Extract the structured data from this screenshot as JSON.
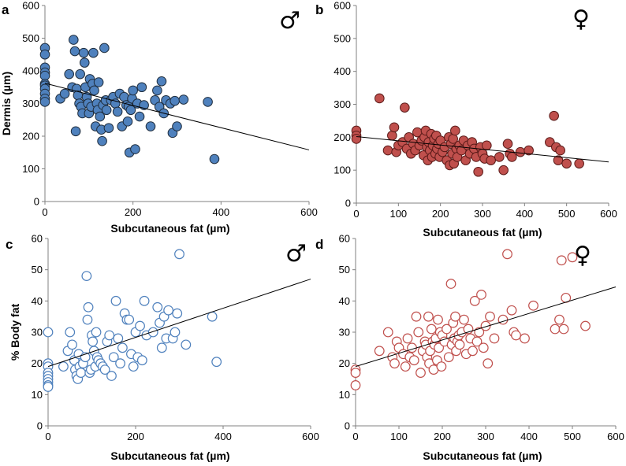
{
  "chart_data": [
    {
      "panel": "a",
      "type": "scatter",
      "sex_symbol": "♂",
      "xlabel": "Subcutaneous fat (µm)",
      "ylabel": "Dermis (µm)",
      "xlim": [
        0,
        600
      ],
      "ylim": [
        0,
        600
      ],
      "xticks": [
        0,
        200,
        400,
        600
      ],
      "yticks": [
        0,
        100,
        200,
        300,
        400,
        500,
        600
      ],
      "marker": {
        "fill": "#4f81bd",
        "stroke": "#1f2d3d",
        "filled": true
      },
      "trendline": {
        "x": [
          0,
          600
        ],
        "y": [
          362,
          158
        ]
      },
      "points": [
        [
          0,
          470
        ],
        [
          0,
          450
        ],
        [
          0,
          410
        ],
        [
          0,
          395
        ],
        [
          0,
          385
        ],
        [
          0,
          360
        ],
        [
          0,
          355
        ],
        [
          0,
          345
        ],
        [
          0,
          330
        ],
        [
          0,
          315
        ],
        [
          0,
          305
        ],
        [
          35,
          315
        ],
        [
          45,
          330
        ],
        [
          55,
          390
        ],
        [
          62,
          350
        ],
        [
          65,
          495
        ],
        [
          68,
          460
        ],
        [
          70,
          215
        ],
        [
          72,
          345
        ],
        [
          75,
          325
        ],
        [
          78,
          300
        ],
        [
          80,
          390
        ],
        [
          82,
          290
        ],
        [
          85,
          270
        ],
        [
          88,
          455
        ],
        [
          90,
          425
        ],
        [
          92,
          350
        ],
        [
          95,
          320
        ],
        [
          98,
          300
        ],
        [
          100,
          270
        ],
        [
          102,
          375
        ],
        [
          105,
          290
        ],
        [
          108,
          360
        ],
        [
          110,
          455
        ],
        [
          112,
          340
        ],
        [
          115,
          230
        ],
        [
          118,
          300
        ],
        [
          120,
          280
        ],
        [
          122,
          365
        ],
        [
          125,
          260
        ],
        [
          128,
          220
        ],
        [
          130,
          185
        ],
        [
          132,
          295
        ],
        [
          135,
          470
        ],
        [
          138,
          310
        ],
        [
          140,
          280
        ],
        [
          145,
          225
        ],
        [
          150,
          310
        ],
        [
          155,
          320
        ],
        [
          160,
          300
        ],
        [
          165,
          275
        ],
        [
          170,
          330
        ],
        [
          175,
          230
        ],
        [
          180,
          320
        ],
        [
          185,
          295
        ],
        [
          188,
          245
        ],
        [
          190,
          290
        ],
        [
          192,
          150
        ],
        [
          195,
          280
        ],
        [
          198,
          315
        ],
        [
          200,
          340
        ],
        [
          205,
          160
        ],
        [
          210,
          300
        ],
        [
          215,
          260
        ],
        [
          220,
          350
        ],
        [
          225,
          295
        ],
        [
          240,
          230
        ],
        [
          250,
          310
        ],
        [
          255,
          340
        ],
        [
          260,
          290
        ],
        [
          265,
          368
        ],
        [
          270,
          270
        ],
        [
          275,
          310
        ],
        [
          285,
          300
        ],
        [
          290,
          210
        ],
        [
          295,
          308
        ],
        [
          300,
          230
        ],
        [
          315,
          312
        ],
        [
          370,
          305
        ],
        [
          385,
          130
        ]
      ]
    },
    {
      "panel": "b",
      "type": "scatter",
      "sex_symbol": "♀",
      "xlabel": "Subcutaneous fat (µm)",
      "ylabel": "",
      "xlim": [
        0,
        600
      ],
      "ylim": [
        0,
        600
      ],
      "xticks": [
        0,
        100,
        200,
        300,
        400,
        500,
        600
      ],
      "yticks": [
        0,
        100,
        200,
        300,
        400,
        500,
        600
      ],
      "marker": {
        "fill": "#c0504d",
        "stroke": "#5a1a18",
        "filled": true
      },
      "trendline": {
        "x": [
          0,
          600
        ],
        "y": [
          202,
          125
        ]
      },
      "points": [
        [
          0,
          220
        ],
        [
          0,
          205
        ],
        [
          0,
          195
        ],
        [
          55,
          318
        ],
        [
          75,
          160
        ],
        [
          85,
          205
        ],
        [
          90,
          230
        ],
        [
          95,
          155
        ],
        [
          100,
          175
        ],
        [
          110,
          185
        ],
        [
          115,
          290
        ],
        [
          120,
          165
        ],
        [
          125,
          200
        ],
        [
          130,
          150
        ],
        [
          135,
          180
        ],
        [
          140,
          160
        ],
        [
          145,
          215
        ],
        [
          150,
          175
        ],
        [
          155,
          190
        ],
        [
          160,
          145
        ],
        [
          162,
          200
        ],
        [
          165,
          220
        ],
        [
          168,
          170
        ],
        [
          170,
          130
        ],
        [
          172,
          185
        ],
        [
          175,
          160
        ],
        [
          178,
          210
        ],
        [
          180,
          140
        ],
        [
          182,
          175
        ],
        [
          185,
          195
        ],
        [
          188,
          150
        ],
        [
          190,
          205
        ],
        [
          192,
          165
        ],
        [
          195,
          180
        ],
        [
          198,
          140
        ],
        [
          200,
          190
        ],
        [
          205,
          155
        ],
        [
          210,
          170
        ],
        [
          215,
          130
        ],
        [
          220,
          200
        ],
        [
          222,
          115
        ],
        [
          225,
          180
        ],
        [
          228,
          150
        ],
        [
          230,
          195
        ],
        [
          232,
          120
        ],
        [
          235,
          220
        ],
        [
          238,
          165
        ],
        [
          240,
          140
        ],
        [
          245,
          175
        ],
        [
          250,
          160
        ],
        [
          255,
          190
        ],
        [
          260,
          130
        ],
        [
          265,
          175
        ],
        [
          270,
          150
        ],
        [
          275,
          185
        ],
        [
          280,
          165
        ],
        [
          285,
          140
        ],
        [
          290,
          95
        ],
        [
          295,
          170
        ],
        [
          300,
          150
        ],
        [
          305,
          135
        ],
        [
          310,
          175
        ],
        [
          320,
          130
        ],
        [
          340,
          140
        ],
        [
          350,
          100
        ],
        [
          360,
          180
        ],
        [
          365,
          150
        ],
        [
          370,
          140
        ],
        [
          390,
          155
        ],
        [
          410,
          160
        ],
        [
          460,
          185
        ],
        [
          470,
          265
        ],
        [
          475,
          170
        ],
        [
          480,
          130
        ],
        [
          485,
          160
        ],
        [
          500,
          120
        ],
        [
          530,
          120
        ]
      ]
    },
    {
      "panel": "c",
      "type": "scatter",
      "sex_symbol": "♂",
      "xlabel": "Subcutaneous fat (µm)",
      "ylabel": "% Body fat",
      "xlim": [
        0,
        600
      ],
      "ylim": [
        0,
        60
      ],
      "xticks": [
        0,
        200,
        400,
        600
      ],
      "yticks": [
        0,
        10,
        20,
        30,
        40,
        50,
        60
      ],
      "marker": {
        "fill": "#ffffff",
        "stroke": "#4f81bd",
        "filled": false
      },
      "trendline": {
        "x": [
          0,
          600
        ],
        "y": [
          19,
          47
        ]
      },
      "points": [
        [
          0,
          30
        ],
        [
          0,
          20
        ],
        [
          0,
          19
        ],
        [
          0,
          17
        ],
        [
          0,
          16
        ],
        [
          0,
          15
        ],
        [
          0,
          14
        ],
        [
          0,
          13
        ],
        [
          0,
          12.5
        ],
        [
          35,
          19
        ],
        [
          45,
          24
        ],
        [
          50,
          30
        ],
        [
          55,
          26
        ],
        [
          60,
          21
        ],
        [
          62,
          18
        ],
        [
          65,
          16
        ],
        [
          68,
          15
        ],
        [
          70,
          23
        ],
        [
          72,
          19
        ],
        [
          75,
          17
        ],
        [
          80,
          20
        ],
        [
          85,
          22
        ],
        [
          88,
          48
        ],
        [
          90,
          34
        ],
        [
          92,
          38
        ],
        [
          95,
          17
        ],
        [
          98,
          18
        ],
        [
          100,
          29
        ],
        [
          102,
          27
        ],
        [
          105,
          24
        ],
        [
          108,
          19
        ],
        [
          110,
          30
        ],
        [
          112,
          22
        ],
        [
          115,
          21
        ],
        [
          120,
          20
        ],
        [
          125,
          19
        ],
        [
          130,
          18
        ],
        [
          135,
          27
        ],
        [
          140,
          29
        ],
        [
          145,
          16
        ],
        [
          150,
          22
        ],
        [
          155,
          40
        ],
        [
          160,
          28
        ],
        [
          165,
          20
        ],
        [
          170,
          25
        ],
        [
          175,
          36
        ],
        [
          180,
          34
        ],
        [
          185,
          34
        ],
        [
          190,
          23
        ],
        [
          195,
          19
        ],
        [
          200,
          30
        ],
        [
          205,
          22
        ],
        [
          210,
          32
        ],
        [
          215,
          21
        ],
        [
          220,
          40
        ],
        [
          225,
          29
        ],
        [
          240,
          30
        ],
        [
          250,
          38
        ],
        [
          255,
          33
        ],
        [
          260,
          25
        ],
        [
          265,
          35
        ],
        [
          270,
          28
        ],
        [
          275,
          37
        ],
        [
          285,
          28
        ],
        [
          290,
          30
        ],
        [
          295,
          36
        ],
        [
          300,
          55
        ],
        [
          315,
          26
        ],
        [
          375,
          35
        ],
        [
          385,
          20.5
        ]
      ]
    },
    {
      "panel": "d",
      "type": "scatter",
      "sex_symbol": "♀",
      "xlabel": "Subcutaneous fat (µm)",
      "ylabel": "",
      "xlim": [
        0,
        600
      ],
      "ylim": [
        0,
        60
      ],
      "xticks": [
        0,
        100,
        200,
        300,
        400,
        500,
        600
      ],
      "yticks": [
        0,
        10,
        20,
        30,
        40,
        50,
        60
      ],
      "marker": {
        "fill": "#ffffff",
        "stroke": "#c0504d",
        "filled": false
      },
      "trendline": {
        "x": [
          0,
          600
        ],
        "y": [
          19,
          44.5
        ]
      },
      "points": [
        [
          0,
          18
        ],
        [
          0,
          17
        ],
        [
          0,
          13
        ],
        [
          55,
          24
        ],
        [
          75,
          30
        ],
        [
          85,
          22
        ],
        [
          90,
          20
        ],
        [
          95,
          27
        ],
        [
          100,
          25
        ],
        [
          110,
          23
        ],
        [
          115,
          19
        ],
        [
          120,
          28
        ],
        [
          125,
          22
        ],
        [
          130,
          25
        ],
        [
          135,
          21
        ],
        [
          140,
          35
        ],
        [
          145,
          30
        ],
        [
          150,
          17
        ],
        [
          155,
          24
        ],
        [
          160,
          27
        ],
        [
          162,
          26
        ],
        [
          165,
          22
        ],
        [
          168,
          35
        ],
        [
          170,
          20
        ],
        [
          172,
          24
        ],
        [
          175,
          31
        ],
        [
          178,
          27
        ],
        [
          180,
          18
        ],
        [
          182,
          26
        ],
        [
          185,
          28
        ],
        [
          188,
          21
        ],
        [
          190,
          34
        ],
        [
          192,
          25
        ],
        [
          195,
          30
        ],
        [
          198,
          19
        ],
        [
          200,
          29
        ],
        [
          205,
          27
        ],
        [
          210,
          31
        ],
        [
          215,
          22
        ],
        [
          220,
          45.5
        ],
        [
          222,
          26
        ],
        [
          225,
          33
        ],
        [
          228,
          28
        ],
        [
          230,
          35
        ],
        [
          232,
          24
        ],
        [
          235,
          27
        ],
        [
          238,
          29
        ],
        [
          240,
          26
        ],
        [
          245,
          30
        ],
        [
          250,
          34
        ],
        [
          255,
          23
        ],
        [
          260,
          31
        ],
        [
          265,
          28
        ],
        [
          270,
          24
        ],
        [
          275,
          40
        ],
        [
          280,
          27
        ],
        [
          285,
          30
        ],
        [
          290,
          42
        ],
        [
          295,
          25
        ],
        [
          300,
          32
        ],
        [
          305,
          20
        ],
        [
          310,
          35
        ],
        [
          320,
          28
        ],
        [
          340,
          34
        ],
        [
          350,
          55
        ],
        [
          360,
          37
        ],
        [
          365,
          30
        ],
        [
          370,
          29
        ],
        [
          390,
          28
        ],
        [
          410,
          38.5
        ],
        [
          460,
          31
        ],
        [
          470,
          34
        ],
        [
          475,
          53
        ],
        [
          480,
          31
        ],
        [
          485,
          41
        ],
        [
          500,
          54
        ],
        [
          530,
          32
        ]
      ]
    }
  ]
}
